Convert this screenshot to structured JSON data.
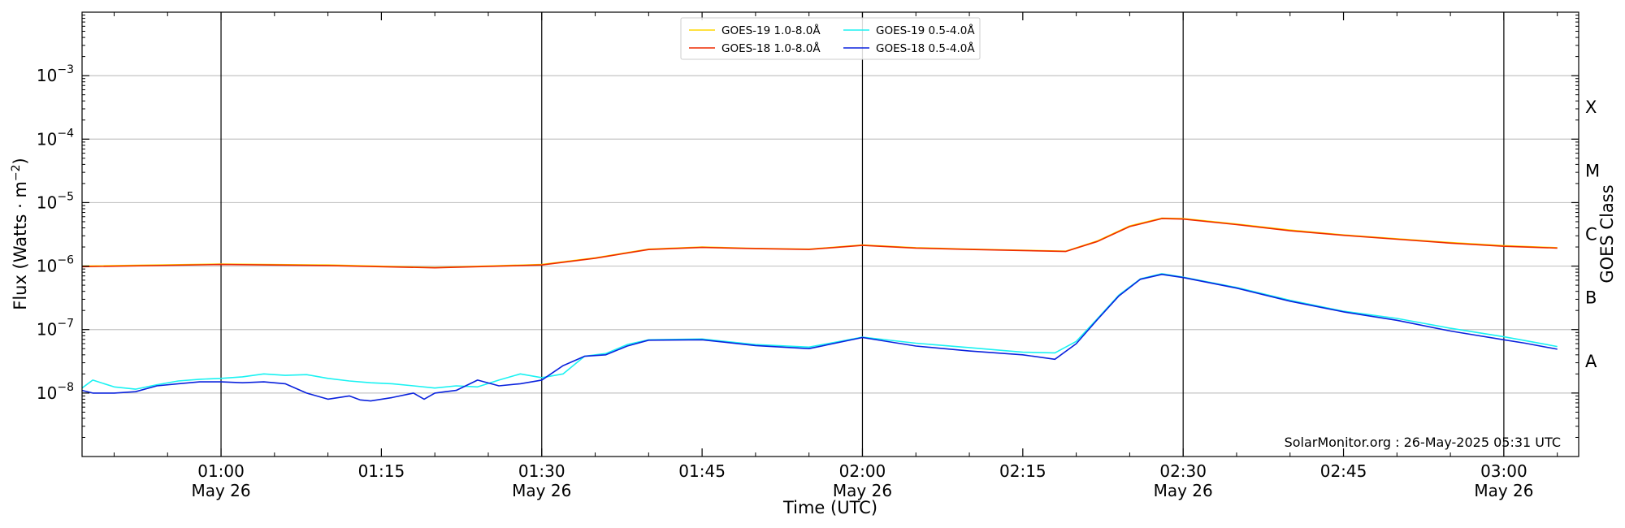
{
  "chart_data": {
    "type": "line",
    "xlabel": "Time (UTC)",
    "ylabel": "Flux (Watts · m",
    "ylabel_exp": "−2",
    "ylabel_end": ")",
    "y_scale": "log",
    "ylim": [
      1e-09,
      0.01
    ],
    "xlim": [
      "00:47",
      "03:07"
    ],
    "x_ticks": [
      {
        "t": "01:00",
        "label": "01:00",
        "date": "May 26",
        "vline": true
      },
      {
        "t": "01:15",
        "label": "01:15",
        "date": "",
        "vline": false
      },
      {
        "t": "01:30",
        "label": "01:30",
        "date": "May 26",
        "vline": true
      },
      {
        "t": "01:45",
        "label": "01:45",
        "date": "",
        "vline": false
      },
      {
        "t": "02:00",
        "label": "02:00",
        "date": "May 26",
        "vline": true
      },
      {
        "t": "02:15",
        "label": "02:15",
        "date": "",
        "vline": false
      },
      {
        "t": "02:30",
        "label": "02:30",
        "date": "May 26",
        "vline": true
      },
      {
        "t": "02:45",
        "label": "02:45",
        "date": "",
        "vline": false
      },
      {
        "t": "03:00",
        "label": "03:00",
        "date": "May 26",
        "vline": true
      }
    ],
    "y_ticks": [
      {
        "value": 1e-08,
        "base": "10",
        "exp": "−8"
      },
      {
        "value": 1e-07,
        "base": "10",
        "exp": "−7"
      },
      {
        "value": 1e-06,
        "base": "10",
        "exp": "−6"
      },
      {
        "value": 1e-05,
        "base": "10",
        "exp": "−5"
      },
      {
        "value": 0.0001,
        "base": "10",
        "exp": "−4"
      },
      {
        "value": 0.001,
        "base": "10",
        "exp": "−3"
      }
    ],
    "grid": "horizontal at major y ticks",
    "right_axis_label": "GOES Class",
    "goes_classes": [
      {
        "label": "A",
        "value": 3.16e-08
      },
      {
        "label": "B",
        "value": 3.16e-07
      },
      {
        "label": "C",
        "value": 3.16e-06
      },
      {
        "label": "M",
        "value": 3.16e-05
      },
      {
        "label": "X",
        "value": 0.000316
      }
    ],
    "watermark": "SolarMonitor.org : 26-May-2025 05:31 UTC",
    "legend_position": "top-center",
    "series": [
      {
        "name": "GOES-19 1.0-8.0Å",
        "color": "#ffd700",
        "x": [
          "00:47",
          "01:00",
          "01:10",
          "01:20",
          "01:30",
          "01:35",
          "01:40",
          "01:45",
          "01:50",
          "01:55",
          "02:00",
          "02:05",
          "02:10",
          "02:15",
          "02:19",
          "02:22",
          "02:25",
          "02:28",
          "02:30",
          "02:35",
          "02:40",
          "02:45",
          "02:50",
          "02:55",
          "03:00",
          "03:05"
        ],
        "y": [
          1e-06,
          1.08e-06,
          1.04e-06,
          9.5e-07,
          1.06e-06,
          1.35e-06,
          1.85e-06,
          2e-06,
          1.9e-06,
          1.85e-06,
          2.15e-06,
          1.95e-06,
          1.85e-06,
          1.78e-06,
          1.72e-06,
          2.5e-06,
          4.3e-06,
          5.7e-06,
          5.6e-06,
          4.6e-06,
          3.7e-06,
          3.1e-06,
          2.7e-06,
          2.35e-06,
          2.1e-06,
          1.95e-06
        ]
      },
      {
        "name": "GOES-18 1.0-8.0Å",
        "color": "#ee2a00",
        "x": [
          "00:47",
          "01:00",
          "01:10",
          "01:20",
          "01:30",
          "01:35",
          "01:40",
          "01:45",
          "01:50",
          "01:55",
          "02:00",
          "02:05",
          "02:10",
          "02:15",
          "02:19",
          "02:22",
          "02:25",
          "02:28",
          "02:30",
          "02:35",
          "02:40",
          "02:45",
          "02:50",
          "02:55",
          "03:00",
          "03:05"
        ],
        "y": [
          9.8e-07,
          1.06e-06,
          1.02e-06,
          9.4e-07,
          1.04e-06,
          1.33e-06,
          1.82e-06,
          1.97e-06,
          1.88e-06,
          1.83e-06,
          2.12e-06,
          1.92e-06,
          1.83e-06,
          1.76e-06,
          1.7e-06,
          2.45e-06,
          4.2e-06,
          5.6e-06,
          5.5e-06,
          4.5e-06,
          3.6e-06,
          3.05e-06,
          2.65e-06,
          2.3e-06,
          2.05e-06,
          1.92e-06
        ]
      },
      {
        "name": "GOES-19 0.5-4.0Å",
        "color": "#1af2f2",
        "x": [
          "00:47",
          "00:48",
          "00:50",
          "00:52",
          "00:54",
          "00:56",
          "00:58",
          "01:00",
          "01:02",
          "01:04",
          "01:06",
          "01:08",
          "01:10",
          "01:12",
          "01:14",
          "01:16",
          "01:18",
          "01:20",
          "01:22",
          "01:24",
          "01:26",
          "01:28",
          "01:30",
          "01:32",
          "01:34",
          "01:36",
          "01:38",
          "01:40",
          "01:45",
          "01:50",
          "01:55",
          "02:00",
          "02:05",
          "02:10",
          "02:15",
          "02:18",
          "02:20",
          "02:22",
          "02:24",
          "02:26",
          "02:28",
          "02:30",
          "02:35",
          "02:40",
          "02:45",
          "02:50",
          "02:55",
          "03:00",
          "03:02",
          "03:05"
        ],
        "y": [
          1.2e-08,
          1.6e-08,
          1.25e-08,
          1.15e-08,
          1.35e-08,
          1.55e-08,
          1.65e-08,
          1.7e-08,
          1.8e-08,
          2e-08,
          1.9e-08,
          1.95e-08,
          1.7e-08,
          1.55e-08,
          1.45e-08,
          1.4e-08,
          1.3e-08,
          1.2e-08,
          1.3e-08,
          1.25e-08,
          1.6e-08,
          2e-08,
          1.75e-08,
          2e-08,
          3.8e-08,
          4.2e-08,
          5.8e-08,
          6.9e-08,
          7.1e-08,
          5.8e-08,
          5.3e-08,
          7.6e-08,
          6.1e-08,
          5.2e-08,
          4.4e-08,
          4.3e-08,
          6.5e-08,
          1.5e-07,
          3.5e-07,
          6.3e-07,
          7.6e-07,
          6.7e-07,
          4.6e-07,
          2.9e-07,
          1.95e-07,
          1.5e-07,
          1.05e-07,
          7.7e-08,
          6.7e-08,
          5.4e-08
        ]
      },
      {
        "name": "GOES-18 0.5-4.0Å",
        "color": "#0a22dd",
        "x": [
          "00:47",
          "00:48",
          "00:50",
          "00:52",
          "00:54",
          "00:56",
          "00:58",
          "01:00",
          "01:02",
          "01:04",
          "01:06",
          "01:08",
          "01:10",
          "01:12",
          "01:13",
          "01:14",
          "01:16",
          "01:18",
          "01:19",
          "01:20",
          "01:21",
          "01:22",
          "01:24",
          "01:26",
          "01:28",
          "01:30",
          "01:32",
          "01:34",
          "01:36",
          "01:38",
          "01:40",
          "01:45",
          "01:50",
          "01:55",
          "02:00",
          "02:05",
          "02:10",
          "02:15",
          "02:18",
          "02:20",
          "02:22",
          "02:24",
          "02:26",
          "02:28",
          "02:30",
          "02:35",
          "02:40",
          "02:45",
          "02:50",
          "02:55",
          "03:00",
          "03:02",
          "03:05"
        ],
        "y": [
          1.1e-08,
          1e-08,
          1e-08,
          1.05e-08,
          1.3e-08,
          1.4e-08,
          1.5e-08,
          1.5e-08,
          1.45e-08,
          1.5e-08,
          1.4e-08,
          1e-08,
          8e-09,
          9e-09,
          7.8e-09,
          7.5e-09,
          8.5e-09,
          1e-08,
          8e-09,
          1e-08,
          1.05e-08,
          1.1e-08,
          1.6e-08,
          1.3e-08,
          1.4e-08,
          1.6e-08,
          2.7e-08,
          3.8e-08,
          4e-08,
          5.5e-08,
          6.8e-08,
          6.9e-08,
          5.6e-08,
          5e-08,
          7.5e-08,
          5.5e-08,
          4.6e-08,
          4e-08,
          3.4e-08,
          6e-08,
          1.45e-07,
          3.4e-07,
          6.2e-07,
          7.4e-07,
          6.6e-07,
          4.5e-07,
          2.8e-07,
          1.9e-07,
          1.4e-07,
          9.5e-08,
          6.9e-08,
          6.1e-08,
          4.9e-08
        ]
      }
    ]
  }
}
